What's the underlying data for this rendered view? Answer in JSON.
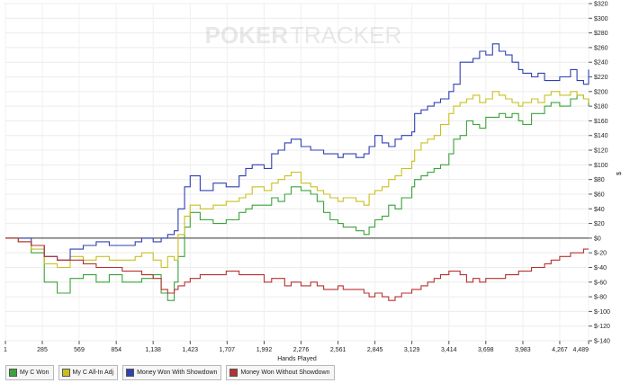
{
  "watermark": {
    "left": "POKER",
    "right": "TRACKER"
  },
  "chart_data": {
    "type": "line",
    "xlabel": "Hands Played",
    "ylabel": "$",
    "xlim": [
      1,
      4489
    ],
    "ylim": [
      -140,
      320
    ],
    "x_ticks": [
      1,
      285,
      569,
      854,
      1138,
      1423,
      1707,
      1992,
      2276,
      2561,
      2845,
      3129,
      3414,
      3698,
      3983,
      4267,
      4489
    ],
    "x_tick_labels": [
      "1",
      "285",
      "569",
      "854",
      "1,138",
      "1,423",
      "1,707",
      "1,992",
      "2,276",
      "2,561",
      "2,845",
      "3,129",
      "3,414",
      "3,698",
      "3,983",
      "4,267",
      "4,489"
    ],
    "y_ticks": [
      -140,
      -120,
      -100,
      -80,
      -60,
      -40,
      -20,
      0,
      20,
      40,
      60,
      80,
      100,
      120,
      140,
      160,
      180,
      200,
      220,
      240,
      260,
      280,
      300,
      320
    ],
    "y_tick_labels": [
      "$-140",
      "$-120",
      "$-100",
      "$-80",
      "$-60",
      "$-40",
      "$-20",
      "$0",
      "$20",
      "$40",
      "$60",
      "$80",
      "$100",
      "$120",
      "$140",
      "$160",
      "$180",
      "$200",
      "$220",
      "$240",
      "$260",
      "$280",
      "$300",
      "$320"
    ],
    "grid": true,
    "legend_position": "bottom",
    "series": [
      {
        "name": "My C Won",
        "color": "#3aa33a",
        "x": [
          1,
          100,
          200,
          300,
          400,
          500,
          600,
          700,
          800,
          900,
          1000,
          1050,
          1138,
          1200,
          1250,
          1300,
          1330,
          1380,
          1423,
          1500,
          1600,
          1700,
          1800,
          1850,
          1900,
          1992,
          2050,
          2100,
          2150,
          2200,
          2276,
          2350,
          2400,
          2450,
          2500,
          2561,
          2600,
          2700,
          2760,
          2800,
          2845,
          2900,
          2950,
          3000,
          3050,
          3129,
          3150,
          3200,
          3250,
          3300,
          3350,
          3414,
          3450,
          3500,
          3550,
          3600,
          3650,
          3698,
          3750,
          3800,
          3850,
          3900,
          3950,
          3983,
          4050,
          4100,
          4150,
          4200,
          4267,
          4350,
          4400,
          4450,
          4489
        ],
        "y": [
          0,
          -5,
          -20,
          -60,
          -75,
          -55,
          -50,
          -60,
          -50,
          -60,
          -60,
          -55,
          -50,
          -75,
          -85,
          -60,
          -25,
          15,
          35,
          25,
          20,
          25,
          35,
          40,
          45,
          45,
          55,
          50,
          60,
          70,
          65,
          60,
          50,
          35,
          25,
          20,
          15,
          10,
          5,
          15,
          25,
          30,
          45,
          40,
          55,
          70,
          80,
          85,
          90,
          95,
          100,
          115,
          135,
          140,
          160,
          155,
          150,
          165,
          165,
          170,
          165,
          170,
          160,
          155,
          170,
          170,
          180,
          185,
          180,
          190,
          195,
          190,
          180
        ]
      },
      {
        "name": "My C All-In Adj",
        "color": "#c8c020",
        "x": [
          1,
          100,
          200,
          300,
          400,
          500,
          600,
          700,
          800,
          900,
          1000,
          1050,
          1138,
          1200,
          1250,
          1300,
          1330,
          1380,
          1423,
          1500,
          1600,
          1700,
          1800,
          1850,
          1900,
          1992,
          2050,
          2100,
          2150,
          2200,
          2276,
          2350,
          2400,
          2450,
          2500,
          2561,
          2600,
          2700,
          2760,
          2800,
          2845,
          2900,
          2950,
          3000,
          3050,
          3129,
          3150,
          3200,
          3250,
          3300,
          3350,
          3414,
          3450,
          3500,
          3550,
          3600,
          3650,
          3698,
          3750,
          3800,
          3850,
          3900,
          3950,
          3983,
          4050,
          4100,
          4150,
          4200,
          4267,
          4350,
          4400,
          4450,
          4489
        ],
        "y": [
          0,
          -5,
          -15,
          -35,
          -40,
          -25,
          -30,
          -25,
          -30,
          -30,
          -25,
          -20,
          -30,
          -40,
          -25,
          -30,
          5,
          30,
          45,
          40,
          45,
          50,
          55,
          60,
          70,
          65,
          75,
          80,
          85,
          90,
          75,
          70,
          65,
          60,
          55,
          50,
          55,
          50,
          45,
          60,
          65,
          70,
          80,
          85,
          95,
          105,
          120,
          130,
          135,
          140,
          155,
          170,
          180,
          185,
          190,
          195,
          185,
          190,
          200,
          195,
          190,
          185,
          180,
          185,
          190,
          185,
          195,
          200,
          195,
          200,
          195,
          190,
          185
        ]
      },
      {
        "name": "Money Won With Showdown",
        "color": "#3040b0",
        "x": [
          1,
          100,
          200,
          300,
          400,
          500,
          600,
          700,
          800,
          900,
          1000,
          1050,
          1138,
          1200,
          1250,
          1300,
          1330,
          1380,
          1423,
          1500,
          1600,
          1700,
          1800,
          1850,
          1900,
          1992,
          2050,
          2100,
          2150,
          2200,
          2276,
          2350,
          2400,
          2450,
          2500,
          2561,
          2600,
          2700,
          2760,
          2800,
          2845,
          2900,
          2950,
          3000,
          3050,
          3129,
          3150,
          3200,
          3250,
          3300,
          3350,
          3414,
          3450,
          3500,
          3550,
          3600,
          3650,
          3698,
          3750,
          3800,
          3850,
          3900,
          3950,
          3983,
          4050,
          4100,
          4150,
          4200,
          4267,
          4350,
          4400,
          4450,
          4489
        ],
        "y": [
          0,
          0,
          -10,
          -25,
          -30,
          -15,
          -10,
          -5,
          -10,
          -10,
          -5,
          0,
          -5,
          0,
          5,
          10,
          40,
          70,
          85,
          65,
          75,
          70,
          85,
          95,
          100,
          95,
          115,
          120,
          130,
          135,
          125,
          120,
          120,
          115,
          115,
          110,
          115,
          110,
          115,
          125,
          140,
          130,
          125,
          135,
          140,
          145,
          170,
          175,
          180,
          185,
          190,
          200,
          210,
          240,
          240,
          245,
          255,
          250,
          265,
          255,
          250,
          240,
          230,
          225,
          220,
          225,
          215,
          215,
          220,
          230,
          215,
          210,
          230
        ]
      },
      {
        "name": "Money Won Without Showdown",
        "color": "#b83030",
        "x": [
          1,
          100,
          200,
          300,
          400,
          500,
          600,
          700,
          800,
          900,
          1000,
          1050,
          1138,
          1200,
          1250,
          1300,
          1330,
          1380,
          1423,
          1500,
          1600,
          1700,
          1800,
          1850,
          1900,
          1992,
          2050,
          2100,
          2150,
          2200,
          2276,
          2350,
          2400,
          2450,
          2500,
          2561,
          2600,
          2700,
          2760,
          2800,
          2845,
          2900,
          2950,
          3000,
          3050,
          3129,
          3150,
          3200,
          3250,
          3300,
          3350,
          3414,
          3450,
          3500,
          3550,
          3600,
          3650,
          3698,
          3750,
          3800,
          3850,
          3900,
          3950,
          3983,
          4050,
          4100,
          4150,
          4200,
          4267,
          4350,
          4400,
          4450,
          4489
        ],
        "y": [
          0,
          -5,
          -10,
          -25,
          -30,
          -30,
          -35,
          -40,
          -40,
          -45,
          -45,
          -50,
          -55,
          -70,
          -75,
          -70,
          -65,
          -60,
          -55,
          -50,
          -50,
          -45,
          -50,
          -50,
          -50,
          -60,
          -55,
          -55,
          -65,
          -60,
          -65,
          -60,
          -65,
          -70,
          -70,
          -65,
          -70,
          -70,
          -75,
          -80,
          -75,
          -80,
          -85,
          -80,
          -75,
          -70,
          -70,
          -65,
          -60,
          -55,
          -50,
          -45,
          -45,
          -50,
          -60,
          -55,
          -60,
          -55,
          -55,
          -55,
          -50,
          -50,
          -45,
          -45,
          -40,
          -40,
          -35,
          -30,
          -25,
          -20,
          -20,
          -15,
          -15
        ]
      }
    ]
  }
}
